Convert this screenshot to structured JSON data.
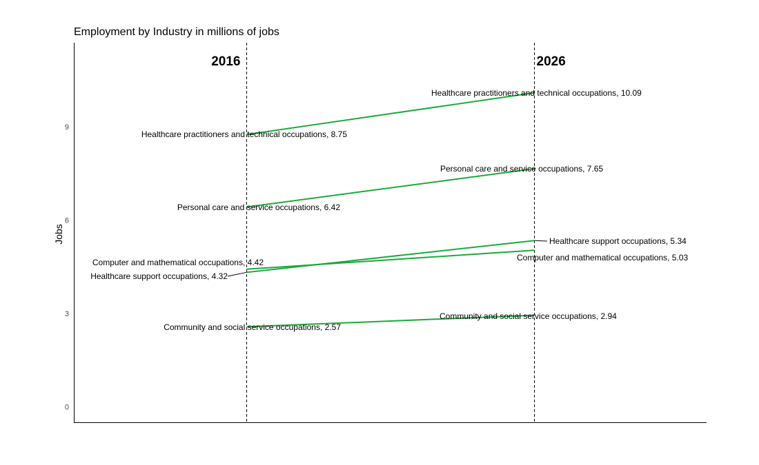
{
  "chart_data": {
    "type": "line",
    "title": "Employment by Industry in millions of jobs",
    "xlabel": "",
    "ylabel": "Jobs",
    "x": [
      "2016",
      "2026"
    ],
    "ylim": [
      -0.5,
      11.7
    ],
    "yticks": [
      0,
      3,
      6,
      9
    ],
    "grid": false,
    "line_color": "#1aaa3a",
    "series": [
      {
        "name": "Healthcare practitioners and technical occupations",
        "values": [
          8.75,
          10.09
        ],
        "labels": [
          "Healthcare practitioners and technical occupations, 8.75",
          "Healthcare practitioners and technical occupations, 10.09"
        ]
      },
      {
        "name": "Personal care and service occupations",
        "values": [
          6.42,
          7.65
        ],
        "labels": [
          "Personal care and service occupations, 6.42",
          "Personal care and service occupations, 7.65"
        ]
      },
      {
        "name": "Computer and mathematical occupations",
        "values": [
          4.42,
          5.03
        ],
        "labels": [
          "Computer and mathematical occupations, 4.42",
          "Computer and mathematical occupations, 5.03"
        ]
      },
      {
        "name": "Healthcare support occupations",
        "values": [
          4.32,
          5.34
        ],
        "labels": [
          "Healthcare support occupations, 4.32",
          "Healthcare support occupations, 5.34"
        ]
      },
      {
        "name": "Community and social service occupations",
        "values": [
          2.57,
          2.94
        ],
        "labels": [
          "Community and social service occupations, 2.57",
          "Community and social service occupations, 2.94"
        ]
      }
    ]
  }
}
